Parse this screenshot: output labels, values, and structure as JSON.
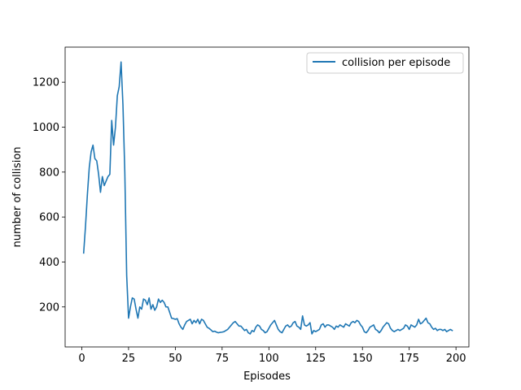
{
  "chart_data": {
    "type": "line",
    "title": "",
    "xlabel": "Episodes",
    "ylabel": "number of collision",
    "xlim": [
      -8.9,
      206.9
    ],
    "ylim": [
      22,
      1356
    ],
    "xticks": [
      0,
      25,
      50,
      75,
      100,
      125,
      150,
      175,
      200
    ],
    "yticks": [
      200,
      400,
      600,
      800,
      1000,
      1200
    ],
    "grid": false,
    "legend": "top-right",
    "series": [
      {
        "name": "collision per episode",
        "color": "#1f77b4",
        "x": [
          1,
          2,
          3,
          4,
          5,
          6,
          7,
          8,
          9,
          10,
          11,
          12,
          13,
          14,
          15,
          16,
          17,
          18,
          19,
          20,
          21,
          22,
          23,
          24,
          25,
          26,
          27,
          28,
          29,
          30,
          31,
          32,
          33,
          34,
          35,
          36,
          37,
          38,
          39,
          40,
          41,
          42,
          43,
          44,
          45,
          46,
          47,
          48,
          49,
          50,
          51,
          52,
          53,
          54,
          55,
          56,
          57,
          58,
          59,
          60,
          61,
          62,
          63,
          64,
          65,
          66,
          67,
          68,
          69,
          70,
          71,
          72,
          73,
          74,
          75,
          76,
          77,
          78,
          79,
          80,
          81,
          82,
          83,
          84,
          85,
          86,
          87,
          88,
          89,
          90,
          91,
          92,
          93,
          94,
          95,
          96,
          97,
          98,
          99,
          100,
          101,
          102,
          103,
          104,
          105,
          106,
          107,
          108,
          109,
          110,
          111,
          112,
          113,
          114,
          115,
          116,
          117,
          118,
          119,
          120,
          121,
          122,
          123,
          124,
          125,
          126,
          127,
          128,
          129,
          130,
          131,
          132,
          133,
          134,
          135,
          136,
          137,
          138,
          139,
          140,
          141,
          142,
          143,
          144,
          145,
          146,
          147,
          148,
          149,
          150,
          151,
          152,
          153,
          154,
          155,
          156,
          157,
          158,
          159,
          160,
          161,
          162,
          163,
          164,
          165,
          166,
          167,
          168,
          169,
          170,
          171,
          172,
          173,
          174,
          175,
          176,
          177,
          178,
          179,
          180,
          181,
          182,
          183,
          184,
          185,
          186,
          187,
          188,
          189,
          190,
          191,
          192,
          193,
          194,
          195,
          196,
          197,
          198
        ],
        "y": [
          440,
          560,
          700,
          820,
          890,
          920,
          860,
          850,
          790,
          710,
          780,
          740,
          760,
          780,
          790,
          1030,
          920,
          1000,
          1140,
          1180,
          1290,
          1100,
          800,
          340,
          150,
          200,
          240,
          235,
          190,
          150,
          200,
          190,
          235,
          230,
          210,
          240,
          190,
          210,
          185,
          200,
          235,
          220,
          230,
          220,
          200,
          200,
          175,
          150,
          148,
          145,
          148,
          125,
          110,
          100,
          120,
          135,
          140,
          145,
          125,
          140,
          130,
          145,
          125,
          145,
          140,
          125,
          110,
          105,
          98,
          90,
          92,
          88,
          85,
          87,
          88,
          90,
          95,
          100,
          110,
          120,
          130,
          135,
          125,
          115,
          115,
          105,
          95,
          100,
          85,
          80,
          95,
          90,
          110,
          120,
          115,
          100,
          95,
          85,
          90,
          105,
          120,
          130,
          140,
          120,
          100,
          90,
          85,
          100,
          115,
          120,
          110,
          115,
          130,
          135,
          115,
          110,
          100,
          160,
          120,
          115,
          120,
          130,
          80,
          95,
          90,
          95,
          100,
          120,
          125,
          110,
          120,
          120,
          115,
          110,
          100,
          115,
          110,
          120,
          115,
          110,
          125,
          120,
          115,
          130,
          135,
          130,
          140,
          135,
          120,
          110,
          90,
          85,
          95,
          110,
          115,
          120,
          100,
          95,
          85,
          95,
          110,
          120,
          130,
          125,
          105,
          95,
          90,
          95,
          100,
          95,
          100,
          105,
          120,
          115,
          100,
          120,
          115,
          110,
          120,
          145,
          125,
          130,
          140,
          150,
          130,
          125,
          110,
          100,
          105,
          95,
          100,
          100,
          95,
          100,
          90,
          95,
          100,
          95
        ]
      }
    ]
  }
}
